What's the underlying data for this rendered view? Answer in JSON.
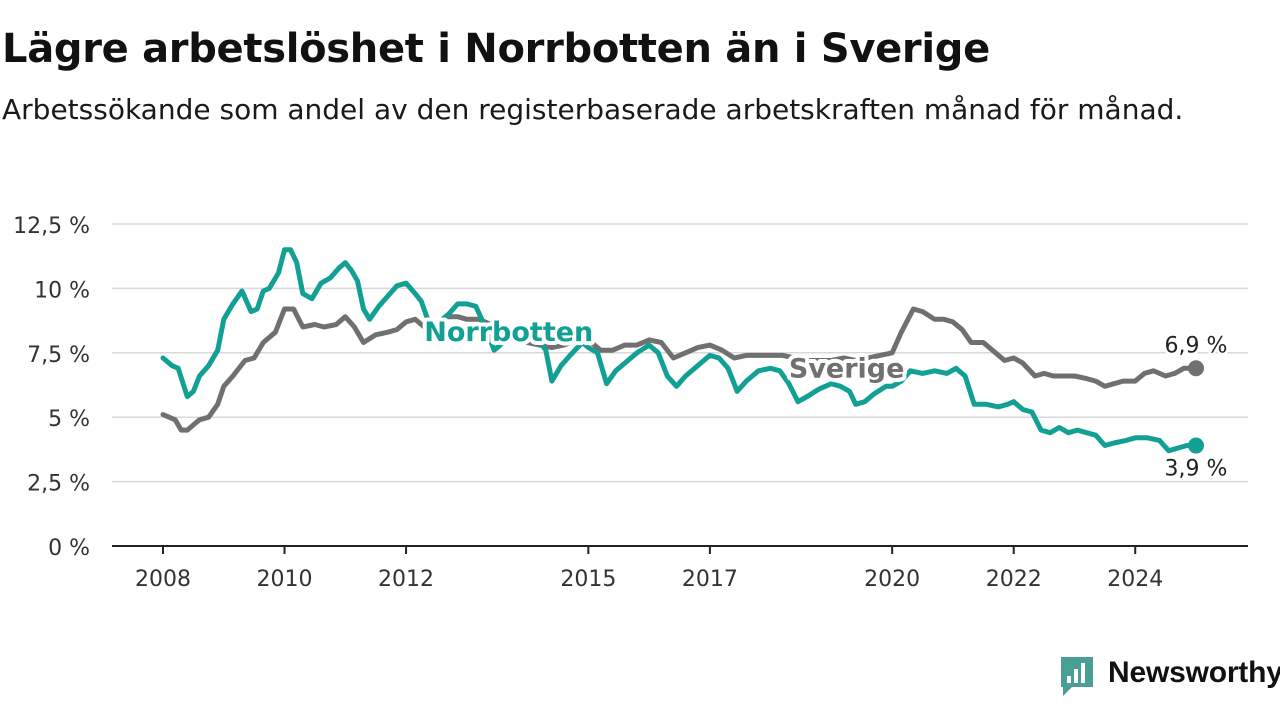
{
  "title": "Lägre arbetslöshet i Norrbotten än i Sverige",
  "subtitle": "Arbetssökande som andel av den registerbaserade arbetskraften månad för månad.",
  "brand": {
    "name": "Newsworthy",
    "color": "#4a9e95"
  },
  "chart_data": {
    "type": "line",
    "xlabel": "",
    "ylabel": "",
    "xlim": [
      2008,
      2025.4
    ],
    "ylim": [
      0,
      12.5
    ],
    "grid": true,
    "x_ticks": [
      {
        "value": 2008,
        "label": "2008"
      },
      {
        "value": 2010,
        "label": "2010"
      },
      {
        "value": 2012,
        "label": "2012"
      },
      {
        "value": 2015,
        "label": "2015"
      },
      {
        "value": 2017,
        "label": "2017"
      },
      {
        "value": 2020,
        "label": "2020"
      },
      {
        "value": 2022,
        "label": "2022"
      },
      {
        "value": 2024,
        "label": "2024"
      }
    ],
    "y_ticks": [
      {
        "value": 0,
        "label": "0 %"
      },
      {
        "value": 2.5,
        "label": "2,5 %"
      },
      {
        "value": 5,
        "label": "5 %"
      },
      {
        "value": 7.5,
        "label": "7,5 %"
      },
      {
        "value": 10,
        "label": "10 %"
      },
      {
        "value": 12.5,
        "label": "12,5 %"
      }
    ],
    "series": [
      {
        "name": "Sverige",
        "color": "#707070",
        "end_label": "6,9 %",
        "points": [
          [
            2008.0,
            5.1
          ],
          [
            2008.2,
            4.9
          ],
          [
            2008.3,
            4.5
          ],
          [
            2008.4,
            4.5
          ],
          [
            2008.5,
            4.7
          ],
          [
            2008.6,
            4.9
          ],
          [
            2008.75,
            5.0
          ],
          [
            2008.9,
            5.5
          ],
          [
            2009.0,
            6.2
          ],
          [
            2009.15,
            6.6
          ],
          [
            2009.35,
            7.2
          ],
          [
            2009.5,
            7.3
          ],
          [
            2009.65,
            7.9
          ],
          [
            2009.85,
            8.3
          ],
          [
            2010.0,
            9.2
          ],
          [
            2010.15,
            9.2
          ],
          [
            2010.3,
            8.5
          ],
          [
            2010.5,
            8.6
          ],
          [
            2010.65,
            8.5
          ],
          [
            2010.85,
            8.6
          ],
          [
            2011.0,
            8.9
          ],
          [
            2011.15,
            8.5
          ],
          [
            2011.3,
            7.9
          ],
          [
            2011.5,
            8.2
          ],
          [
            2011.7,
            8.3
          ],
          [
            2011.85,
            8.4
          ],
          [
            2012.0,
            8.7
          ],
          [
            2012.15,
            8.8
          ],
          [
            2012.3,
            8.5
          ],
          [
            2012.5,
            8.6
          ],
          [
            2012.65,
            8.9
          ],
          [
            2012.85,
            8.9
          ],
          [
            2013.0,
            8.8
          ],
          [
            2013.2,
            8.8
          ],
          [
            2013.4,
            8.6
          ],
          [
            2013.6,
            8.2
          ],
          [
            2013.8,
            8.0
          ],
          [
            2014.0,
            7.9
          ],
          [
            2014.2,
            7.8
          ],
          [
            2014.4,
            7.7
          ],
          [
            2014.6,
            7.8
          ],
          [
            2014.8,
            8.0
          ],
          [
            2015.0,
            8.0
          ],
          [
            2015.2,
            7.6
          ],
          [
            2015.4,
            7.6
          ],
          [
            2015.6,
            7.8
          ],
          [
            2015.8,
            7.8
          ],
          [
            2016.0,
            8.0
          ],
          [
            2016.2,
            7.9
          ],
          [
            2016.4,
            7.3
          ],
          [
            2016.6,
            7.5
          ],
          [
            2016.8,
            7.7
          ],
          [
            2017.0,
            7.8
          ],
          [
            2017.2,
            7.6
          ],
          [
            2017.4,
            7.3
          ],
          [
            2017.6,
            7.4
          ],
          [
            2017.8,
            7.4
          ],
          [
            2018.0,
            7.4
          ],
          [
            2018.2,
            7.4
          ],
          [
            2018.4,
            7.3
          ],
          [
            2018.6,
            7.2
          ],
          [
            2018.8,
            7.2
          ],
          [
            2019.0,
            7.2
          ],
          [
            2019.2,
            7.3
          ],
          [
            2019.4,
            7.2
          ],
          [
            2019.6,
            7.3
          ],
          [
            2019.8,
            7.4
          ],
          [
            2020.0,
            7.5
          ],
          [
            2020.15,
            8.3
          ],
          [
            2020.35,
            9.2
          ],
          [
            2020.5,
            9.1
          ],
          [
            2020.7,
            8.8
          ],
          [
            2020.85,
            8.8
          ],
          [
            2021.0,
            8.7
          ],
          [
            2021.15,
            8.4
          ],
          [
            2021.3,
            7.9
          ],
          [
            2021.5,
            7.9
          ],
          [
            2021.65,
            7.6
          ],
          [
            2021.85,
            7.2
          ],
          [
            2022.0,
            7.3
          ],
          [
            2022.15,
            7.1
          ],
          [
            2022.35,
            6.6
          ],
          [
            2022.5,
            6.7
          ],
          [
            2022.65,
            6.6
          ],
          [
            2022.85,
            6.6
          ],
          [
            2023.0,
            6.6
          ],
          [
            2023.2,
            6.5
          ],
          [
            2023.35,
            6.4
          ],
          [
            2023.5,
            6.2
          ],
          [
            2023.65,
            6.3
          ],
          [
            2023.8,
            6.4
          ],
          [
            2024.0,
            6.4
          ],
          [
            2024.15,
            6.7
          ],
          [
            2024.3,
            6.8
          ],
          [
            2024.5,
            6.6
          ],
          [
            2024.65,
            6.7
          ],
          [
            2024.8,
            6.9
          ],
          [
            2025.0,
            6.9
          ]
        ]
      },
      {
        "name": "Norrbotten",
        "color": "#12a095",
        "end_label": "3,9 %",
        "points": [
          [
            2008.0,
            7.3
          ],
          [
            2008.15,
            7.0
          ],
          [
            2008.25,
            6.9
          ],
          [
            2008.4,
            5.8
          ],
          [
            2008.5,
            6.0
          ],
          [
            2008.6,
            6.6
          ],
          [
            2008.75,
            7.0
          ],
          [
            2008.9,
            7.6
          ],
          [
            2009.0,
            8.8
          ],
          [
            2009.15,
            9.4
          ],
          [
            2009.3,
            9.9
          ],
          [
            2009.45,
            9.1
          ],
          [
            2009.55,
            9.2
          ],
          [
            2009.65,
            9.9
          ],
          [
            2009.75,
            10.0
          ],
          [
            2009.9,
            10.6
          ],
          [
            2010.0,
            11.5
          ],
          [
            2010.1,
            11.5
          ],
          [
            2010.2,
            11.0
          ],
          [
            2010.3,
            9.8
          ],
          [
            2010.45,
            9.6
          ],
          [
            2010.6,
            10.2
          ],
          [
            2010.75,
            10.4
          ],
          [
            2010.9,
            10.8
          ],
          [
            2011.0,
            11.0
          ],
          [
            2011.1,
            10.7
          ],
          [
            2011.2,
            10.3
          ],
          [
            2011.3,
            9.2
          ],
          [
            2011.4,
            8.8
          ],
          [
            2011.55,
            9.3
          ],
          [
            2011.7,
            9.7
          ],
          [
            2011.85,
            10.1
          ],
          [
            2012.0,
            10.2
          ],
          [
            2012.15,
            9.8
          ],
          [
            2012.25,
            9.5
          ],
          [
            2012.4,
            8.5
          ],
          [
            2012.55,
            8.7
          ],
          [
            2012.7,
            9.0
          ],
          [
            2012.85,
            9.4
          ],
          [
            2013.0,
            9.4
          ],
          [
            2013.15,
            9.3
          ],
          [
            2013.3,
            8.5
          ],
          [
            2013.45,
            7.6
          ],
          [
            2013.6,
            7.9
          ],
          [
            2013.8,
            8.3
          ],
          [
            2014.0,
            8.3
          ],
          [
            2014.15,
            8.1
          ],
          [
            2014.3,
            7.6
          ],
          [
            2014.4,
            6.4
          ],
          [
            2014.55,
            7.0
          ],
          [
            2014.7,
            7.4
          ],
          [
            2014.9,
            7.9
          ],
          [
            2015.0,
            7.7
          ],
          [
            2015.15,
            7.5
          ],
          [
            2015.3,
            6.3
          ],
          [
            2015.45,
            6.8
          ],
          [
            2015.6,
            7.1
          ],
          [
            2015.8,
            7.5
          ],
          [
            2016.0,
            7.8
          ],
          [
            2016.15,
            7.5
          ],
          [
            2016.3,
            6.6
          ],
          [
            2016.45,
            6.2
          ],
          [
            2016.6,
            6.6
          ],
          [
            2016.8,
            7.0
          ],
          [
            2017.0,
            7.4
          ],
          [
            2017.15,
            7.3
          ],
          [
            2017.3,
            6.9
          ],
          [
            2017.45,
            6.0
          ],
          [
            2017.6,
            6.4
          ],
          [
            2017.8,
            6.8
          ],
          [
            2018.0,
            6.9
          ],
          [
            2018.15,
            6.8
          ],
          [
            2018.3,
            6.3
          ],
          [
            2018.45,
            5.6
          ],
          [
            2018.6,
            5.8
          ],
          [
            2018.8,
            6.1
          ],
          [
            2019.0,
            6.3
          ],
          [
            2019.15,
            6.2
          ],
          [
            2019.3,
            6.0
          ],
          [
            2019.4,
            5.5
          ],
          [
            2019.55,
            5.6
          ],
          [
            2019.7,
            5.9
          ],
          [
            2019.9,
            6.2
          ],
          [
            2020.0,
            6.2
          ],
          [
            2020.15,
            6.4
          ],
          [
            2020.3,
            6.8
          ],
          [
            2020.5,
            6.7
          ],
          [
            2020.7,
            6.8
          ],
          [
            2020.9,
            6.7
          ],
          [
            2021.05,
            6.9
          ],
          [
            2021.2,
            6.6
          ],
          [
            2021.35,
            5.5
          ],
          [
            2021.55,
            5.5
          ],
          [
            2021.75,
            5.4
          ],
          [
            2021.9,
            5.5
          ],
          [
            2022.0,
            5.6
          ],
          [
            2022.15,
            5.3
          ],
          [
            2022.3,
            5.2
          ],
          [
            2022.45,
            4.5
          ],
          [
            2022.6,
            4.4
          ],
          [
            2022.75,
            4.6
          ],
          [
            2022.9,
            4.4
          ],
          [
            2023.05,
            4.5
          ],
          [
            2023.2,
            4.4
          ],
          [
            2023.35,
            4.3
          ],
          [
            2023.5,
            3.9
          ],
          [
            2023.65,
            4.0
          ],
          [
            2023.85,
            4.1
          ],
          [
            2024.0,
            4.2
          ],
          [
            2024.2,
            4.2
          ],
          [
            2024.4,
            4.1
          ],
          [
            2024.55,
            3.7
          ],
          [
            2024.7,
            3.8
          ],
          [
            2024.85,
            3.9
          ],
          [
            2025.0,
            3.9
          ]
        ]
      }
    ]
  }
}
